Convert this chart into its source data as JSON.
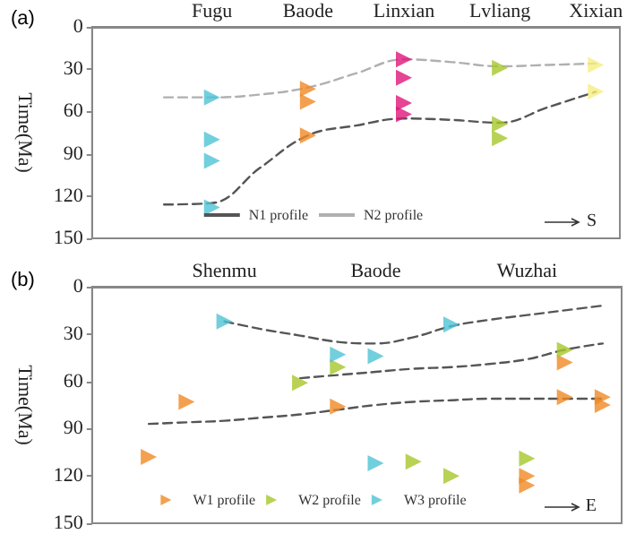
{
  "chart_data": [
    {
      "type": "scatter",
      "title": "(a)",
      "ylabel": "Time(Ma)",
      "categories": [
        null,
        null,
        "Fugu",
        null,
        "Baode",
        null,
        "Linxian",
        null,
        "Lvliang",
        null,
        "Xixian"
      ],
      "ylim": [
        150,
        0
      ],
      "yticks": [
        0,
        30,
        60,
        90,
        120,
        150
      ],
      "grid": false,
      "legend": "bottom",
      "marker": "triangle",
      "annotations": [
        "S"
      ],
      "series": [
        {
          "color": "#4fc3d4",
          "x": [
            "Fugu",
            "Fugu",
            "Fugu",
            "Fugu"
          ],
          "values": [
            50,
            80,
            95,
            128
          ]
        },
        {
          "color": "#f08a24",
          "x": [
            "Baode",
            "Baode",
            "Baode"
          ],
          "values": [
            44,
            53,
            77
          ]
        },
        {
          "color": "#e0157a",
          "x": [
            "Linxian",
            "Linxian",
            "Linxian",
            "Linxian"
          ],
          "values": [
            23,
            36,
            54,
            62
          ]
        },
        {
          "color": "#a6c72a",
          "x": [
            "Lvliang",
            "Lvliang",
            "Lvliang"
          ],
          "values": [
            29,
            69,
            79
          ]
        },
        {
          "color": "#f5ef80",
          "x": [
            "Xixian",
            "Xixian"
          ],
          "values": [
            27,
            46
          ]
        },
        {
          "name": "N1 profile",
          "type": "line",
          "color": "#555555",
          "marker": "none",
          "line_style": "dashed",
          "values": [
            null,
            126,
            125,
            100,
            77,
            70,
            65,
            66,
            68,
            57,
            46
          ]
        },
        {
          "name": "N2 profile",
          "type": "line",
          "color": "#b0b0b0",
          "marker": "none",
          "line_style": "dashed",
          "values": [
            null,
            50,
            50,
            48,
            43,
            33,
            23,
            25,
            28,
            27,
            26
          ]
        }
      ]
    },
    {
      "type": "scatter",
      "title": "(b)",
      "ylabel": "Time(Ma)",
      "categories": [
        null,
        null,
        null,
        "Shenmu",
        null,
        null,
        null,
        "Baode",
        null,
        null,
        null,
        "Wuzhai",
        null,
        null
      ],
      "ylim": [
        150,
        0
      ],
      "yticks": [
        0,
        30,
        60,
        90,
        120,
        150
      ],
      "grid": false,
      "legend": "bottom",
      "marker": "triangle",
      "annotations": [
        "E"
      ],
      "series": [
        {
          "name": "W1 profile",
          "color": "#f08a24",
          "values": [
            null,
            108,
            73,
            null,
            null,
            null,
            76,
            null,
            null,
            null,
            null,
            120,
            48,
            75
          ]
        },
        {
          "name": "W2 profile",
          "color": "#a6c72a",
          "values": [
            null,
            null,
            null,
            null,
            null,
            61,
            51,
            null,
            111,
            120,
            null,
            109,
            40,
            null
          ]
        },
        {
          "name": "W3 profile",
          "color": "#4fc3d4",
          "values": [
            null,
            null,
            null,
            22,
            null,
            null,
            43,
            44,
            null,
            24,
            null,
            null,
            null,
            null
          ]
        },
        {
          "color": "#f08a24",
          "values": [
            null,
            null,
            null,
            null,
            null,
            null,
            null,
            null,
            null,
            null,
            null,
            126,
            70,
            70
          ]
        },
        {
          "color": "#4fc3d4",
          "values": [
            null,
            null,
            null,
            null,
            null,
            null,
            null,
            112,
            null,
            null,
            null,
            null,
            null,
            null
          ]
        },
        {
          "type": "line",
          "color": "#555555",
          "marker": "none",
          "line_style": "dashed",
          "values": [
            null,
            null,
            null,
            22,
            27,
            31,
            35,
            36,
            32,
            25,
            21,
            18,
            15,
            12
          ]
        },
        {
          "type": "line",
          "color": "#555555",
          "marker": "none",
          "line_style": "dashed",
          "values": [
            null,
            null,
            null,
            null,
            null,
            58,
            56,
            54,
            52,
            51,
            49,
            46,
            40,
            36
          ]
        },
        {
          "type": "line",
          "color": "#555555",
          "marker": "none",
          "line_style": "dashed",
          "values": [
            null,
            87,
            86,
            85,
            83,
            81,
            78,
            75,
            73,
            72,
            71,
            71,
            71,
            71
          ]
        }
      ]
    }
  ]
}
